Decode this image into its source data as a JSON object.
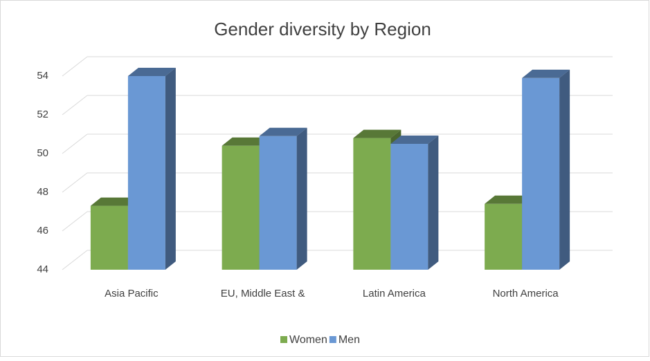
{
  "chart_data": {
    "type": "bar3d",
    "title": "Gender diversity by Region",
    "categories": [
      "Asia Pacific",
      "EU, Middle East &",
      "Latin America",
      "North America"
    ],
    "series": [
      {
        "name": "Women",
        "color": "#7dab4f",
        "values": [
          47.3,
          50.4,
          50.8,
          47.4
        ]
      },
      {
        "name": "Men",
        "color": "#6a98d4",
        "values": [
          54,
          50.9,
          50.5,
          53.9
        ]
      }
    ],
    "ylim": [
      44,
      54
    ],
    "yticks": [
      44,
      46,
      48,
      50,
      52,
      54
    ],
    "grid": true,
    "legend": "bottom"
  }
}
